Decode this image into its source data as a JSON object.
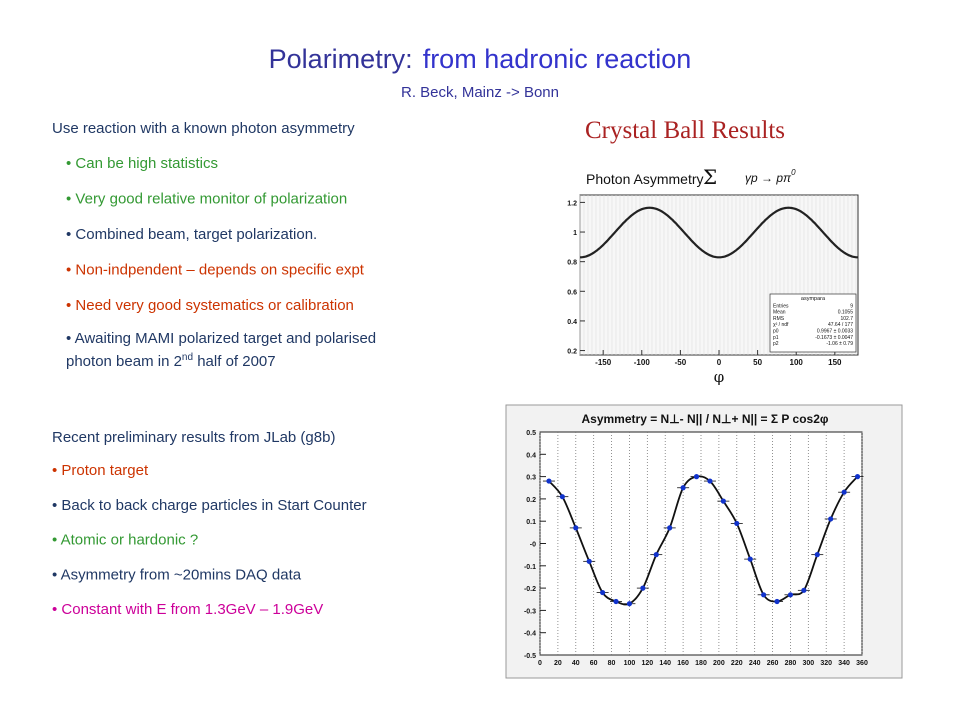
{
  "title": {
    "part1": "Polarimetry:",
    "part2": "from hadronic reaction"
  },
  "subtitle": "R. Beck, Mainz -> Bonn",
  "section1": {
    "heading": "Use reaction with a known photon asymmetry",
    "bullets": [
      "• Can be high statistics",
      "• Very good relative monitor of polarization",
      "• Combined beam, target polarization.",
      "• Non-indpendent – depends on specific expt",
      "• Need  very good systematics or calibration"
    ],
    "last_bullet": {
      "line1": "• Awaiting MAMI polarized target and polarised",
      "line2": "photon beam in 2",
      "sup": "nd",
      "after": " half of 2007"
    }
  },
  "section2": {
    "heading": "Recent preliminary results from JLab (g8b)",
    "bullets": [
      "• Proton target",
      "• Back to back charge particles in Start Counter",
      "• Atomic or hardonic ?",
      "• Asymmetry from ~20mins DAQ data",
      "• Constant with E from 1.3GeV – 1.9GeV"
    ]
  },
  "crystal_ball": {
    "heading": "Crystal Ball Results",
    "chart_data": {
      "type": "fit",
      "title": "Photon Asymmetry",
      "symbol": "Σ",
      "reaction": "γp → pπ",
      "reaction_sup": "0",
      "x_label": "φ",
      "xlim": [
        -180,
        180
      ],
      "ylim": [
        0.17,
        1.25
      ],
      "xticks": [
        -150,
        -100,
        -50,
        0,
        50,
        100,
        150
      ],
      "yticks": [
        0.2,
        0.4,
        0.6,
        0.8,
        1,
        1.2
      ],
      "stats": {
        "name": "asympara",
        "rows": [
          [
            "Entries",
            "9"
          ],
          [
            "Mean",
            "0.1055"
          ],
          [
            "RMS",
            "102.7"
          ],
          [
            "χ² / ndf",
            "47.64 / 177"
          ]
        ],
        "p0": {
          "value": 0.9967,
          "label": "0.9967 ± 0.0033"
        },
        "p1": {
          "value": -0.1673,
          "label": "-0.1673 ± 0.0047"
        },
        "p2": {
          "value": -1.06,
          "label": "-1.06 ± 0.79"
        },
        "p_names": [
          "p0",
          "p1",
          "p2"
        ]
      },
      "color": "#222222"
    }
  },
  "jlab": {
    "chart_data": {
      "type": "scatter",
      "title": "Asymmetry  =  N⊥- N|| / N⊥+ N||  =  Σ P cos2φ",
      "x": [
        10,
        25,
        40,
        55,
        70,
        85,
        100,
        115,
        130,
        145,
        160,
        175,
        190,
        205,
        220,
        235,
        250,
        265,
        280,
        295,
        310,
        325,
        340,
        355
      ],
      "values": [
        0.28,
        0.21,
        0.07,
        -0.08,
        -0.22,
        -0.26,
        -0.27,
        -0.2,
        -0.05,
        0.07,
        0.25,
        0.3,
        0.28,
        0.19,
        0.09,
        -0.07,
        -0.23,
        -0.26,
        -0.23,
        -0.21,
        -0.05,
        0.11,
        0.23,
        0.3
      ],
      "xlim": [
        0,
        360
      ],
      "ylim": [
        -0.5,
        0.5
      ],
      "xticks": [
        0,
        20,
        40,
        60,
        80,
        100,
        120,
        140,
        160,
        180,
        200,
        220,
        240,
        260,
        280,
        300,
        320,
        340,
        360
      ],
      "yticks": [
        0.5,
        0.4,
        0.3,
        0.2,
        0.1,
        {
          "value": 0,
          "label": "-0"
        },
        -0.1,
        -0.2,
        -0.3,
        -0.4,
        -0.5
      ],
      "color": "#1133cc",
      "grid": true
    }
  }
}
